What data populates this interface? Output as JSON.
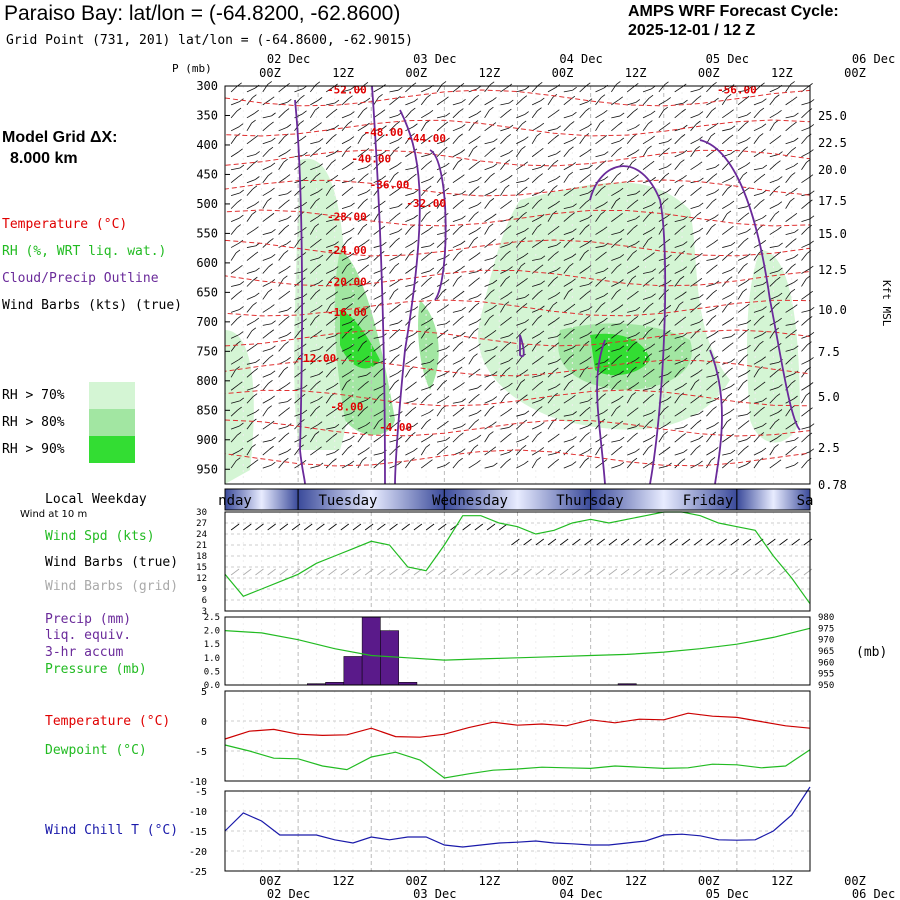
{
  "header": {
    "title": "Paraiso Bay:  lat/lon = (-64.8200, -62.8600)",
    "subtitle": "Grid Point (731, 201) lat/lon = (-64.8600, -62.9015)",
    "cycle_line1": "AMPS WRF Forecast Cycle:",
    "cycle_line2": "2025-12-01 / 12  Z"
  },
  "sidebar": {
    "model_grid_line1": "Model Grid ΔX:",
    "model_grid_line2": "8.000 km",
    "legend": [
      {
        "label": "Temperature (°C)",
        "color": "#e00000"
      },
      {
        "label": "RH (%, WRT liq. wat.)",
        "color": "#22bb22"
      },
      {
        "label": "Cloud/Precip Outline",
        "color": "#6a2a9a"
      },
      {
        "label": "Wind Barbs (kts) (true)",
        "color": "#000000"
      }
    ],
    "rh_levels": [
      {
        "label": "RH > 70%",
        "color": "#d4f5d4"
      },
      {
        "label": "RH > 80%",
        "color": "#a2e6a2"
      },
      {
        "label": "RH > 90%",
        "color": "#33dd33"
      }
    ],
    "weekday_label": "Local Weekday",
    "wind_at": "Wind at 10 m",
    "wind_labels": [
      {
        "label": "Wind Spd (kts)",
        "color": "#22bb22"
      },
      {
        "label": "Wind Barbs (true)",
        "color": "#000000"
      },
      {
        "label": "Wind Barbs (grid)",
        "color": "#aaaaaa"
      }
    ],
    "precip_labels": [
      {
        "label": "Precip (mm)",
        "color": "#6a2a9a"
      },
      {
        "label": "liq. equiv.",
        "color": "#6a2a9a"
      },
      {
        "label": "3-hr accum",
        "color": "#6a2a9a"
      },
      {
        "label": "Pressure (mb)",
        "color": "#22bb22"
      }
    ],
    "temp_labels": [
      {
        "label": "Temperature (°C)",
        "color": "#e00000"
      },
      {
        "label": "Dewpoint (°C)",
        "color": "#22bb22"
      }
    ],
    "windchill_label": {
      "label": "Wind Chill T (°C)",
      "color": "#1a1aaa"
    }
  },
  "chart_data": {
    "type": "line",
    "time_axis": {
      "ticks": [
        "00Z",
        "12Z",
        "00Z",
        "12Z",
        "00Z",
        "12Z",
        "00Z",
        "12Z",
        "00Z",
        "12Z"
      ],
      "dates": [
        "02 Dec",
        "03 Dec",
        "04 Dec",
        "05 Dec",
        "06 Dec"
      ]
    },
    "weekdays": [
      "nday",
      "Tuesday",
      "Wednesday",
      "Thursday",
      "Friday",
      "Sa"
    ],
    "cross_section": {
      "pressure_label": "P (mb)",
      "pressure_ticks": [
        300,
        350,
        400,
        450,
        500,
        550,
        600,
        650,
        700,
        750,
        800,
        850,
        900,
        950
      ],
      "height_ticks": [
        "25.0",
        "22.5",
        "20.0",
        "17.5",
        "15.0",
        "12.5",
        "10.0",
        "7.5",
        "5.0",
        "2.5",
        "0.78"
      ],
      "height_label": "Kft MSL",
      "temperature_labels": [
        {
          "text": "-52.00",
          "t": 20,
          "p": 313
        },
        {
          "text": "-56.00",
          "t": 84,
          "p": 313
        },
        {
          "text": "-48.00",
          "t": 26,
          "p": 385
        },
        {
          "text": "-44.00",
          "t": 33,
          "p": 395
        },
        {
          "text": "-40.00",
          "t": 24,
          "p": 430
        },
        {
          "text": "-36.00",
          "t": 27,
          "p": 474
        },
        {
          "text": "-32.00",
          "t": 33,
          "p": 505
        },
        {
          "text": "-28.00",
          "t": 20,
          "p": 528
        },
        {
          "text": "-24.00",
          "t": 20,
          "p": 585
        },
        {
          "text": "-20.00",
          "t": 20,
          "p": 638
        },
        {
          "text": "-16.00",
          "t": 20,
          "p": 690
        },
        {
          "text": "-12.00",
          "t": 15,
          "p": 768
        },
        {
          "text": "-8.00",
          "t": 20,
          "p": 850
        },
        {
          "text": "-4.00",
          "t": 28,
          "p": 885
        }
      ]
    },
    "wind_speed": {
      "yticks": [
        3,
        6,
        9,
        12,
        15,
        18,
        21,
        24,
        27,
        30
      ],
      "ylim": [
        3,
        30
      ],
      "x": [
        0,
        3,
        6,
        9,
        12,
        15,
        18,
        21,
        24,
        27,
        30,
        33,
        36,
        39,
        42,
        45,
        48,
        51,
        54,
        57,
        60,
        63,
        66,
        69,
        72,
        75,
        78,
        81,
        84,
        87,
        90,
        93,
        96
      ],
      "values": [
        13,
        7,
        9,
        11,
        13,
        16,
        18,
        20,
        22,
        21,
        15,
        14,
        21,
        29,
        29,
        27,
        26,
        24,
        25,
        27,
        28,
        27,
        28,
        29,
        30,
        30,
        29,
        27,
        26,
        25,
        18,
        12,
        5
      ]
    },
    "precip_pressure": {
      "precip_yticks": [
        "2.5",
        "2.0",
        "1.5",
        "1.0",
        "0.5",
        "0.0"
      ],
      "pressure_yticks": [
        980,
        975,
        970,
        965,
        960,
        955,
        950
      ],
      "pressure_unit": "(mb)",
      "precip_bars": [
        {
          "t": 15,
          "mm": 0.05
        },
        {
          "t": 18,
          "mm": 0.1
        },
        {
          "t": 21,
          "mm": 1.05
        },
        {
          "t": 24,
          "mm": 2.5
        },
        {
          "t": 27,
          "mm": 2.0
        },
        {
          "t": 30,
          "mm": 0.1
        },
        {
          "t": 66,
          "mm": 0.05
        }
      ],
      "pressure_x": [
        0,
        6,
        12,
        18,
        24,
        30,
        36,
        42,
        48,
        54,
        60,
        66,
        72,
        78,
        84,
        90,
        96
      ],
      "pressure": [
        974,
        973,
        970,
        966,
        963,
        962,
        961,
        961.5,
        962,
        962.5,
        963,
        963.5,
        964.5,
        966,
        968,
        971,
        975
      ]
    },
    "temperature": {
      "yticks": [
        5,
        0,
        -5,
        -10
      ],
      "x": [
        0,
        4,
        8,
        12,
        16,
        20,
        24,
        28,
        32,
        36,
        40,
        44,
        48,
        52,
        56,
        60,
        64,
        68,
        72,
        76,
        80,
        84,
        88,
        92,
        96
      ],
      "temp": [
        -3,
        -1.7,
        -1.4,
        -2.2,
        -2.4,
        -2.3,
        -1.2,
        -2.6,
        -2.7,
        -2.2,
        -1.1,
        -0.2,
        -0.7,
        -0.5,
        -0.8,
        0.2,
        -0.3,
        0.3,
        0.2,
        1.3,
        0.8,
        0.6,
        -0.1,
        -0.8,
        -1.2
      ],
      "dewpoint": [
        -4,
        -5,
        -6.2,
        -6.3,
        -7.5,
        -8.1,
        -6,
        -5.2,
        -6.5,
        -9.5,
        -8.8,
        -8.2,
        -8,
        -7.7,
        -7.8,
        -7.9,
        -7.5,
        -7.7,
        -7.9,
        -7.8,
        -7.2,
        -7.3,
        -7.8,
        -7.5,
        -4.8
      ]
    },
    "wind_chill": {
      "yticks": [
        -5,
        -10,
        -15,
        -20,
        -25
      ],
      "x": [
        0,
        3,
        6,
        9,
        12,
        15,
        18,
        21,
        24,
        27,
        30,
        33,
        36,
        39,
        42,
        45,
        48,
        51,
        54,
        57,
        60,
        63,
        66,
        69,
        72,
        75,
        78,
        81,
        84,
        87,
        90,
        93,
        96
      ],
      "values": [
        -15,
        -10.5,
        -12.5,
        -16,
        -16,
        -16,
        -17.2,
        -18,
        -16.5,
        -17.2,
        -16.5,
        -16.5,
        -18.5,
        -19,
        -18.5,
        -18,
        -17.8,
        -17.5,
        -18,
        -18.2,
        -18.5,
        -18.5,
        -18,
        -17.5,
        -16,
        -15.8,
        -16.2,
        -17.2,
        -17.3,
        -17.2,
        -15,
        -11,
        -4
      ]
    }
  }
}
